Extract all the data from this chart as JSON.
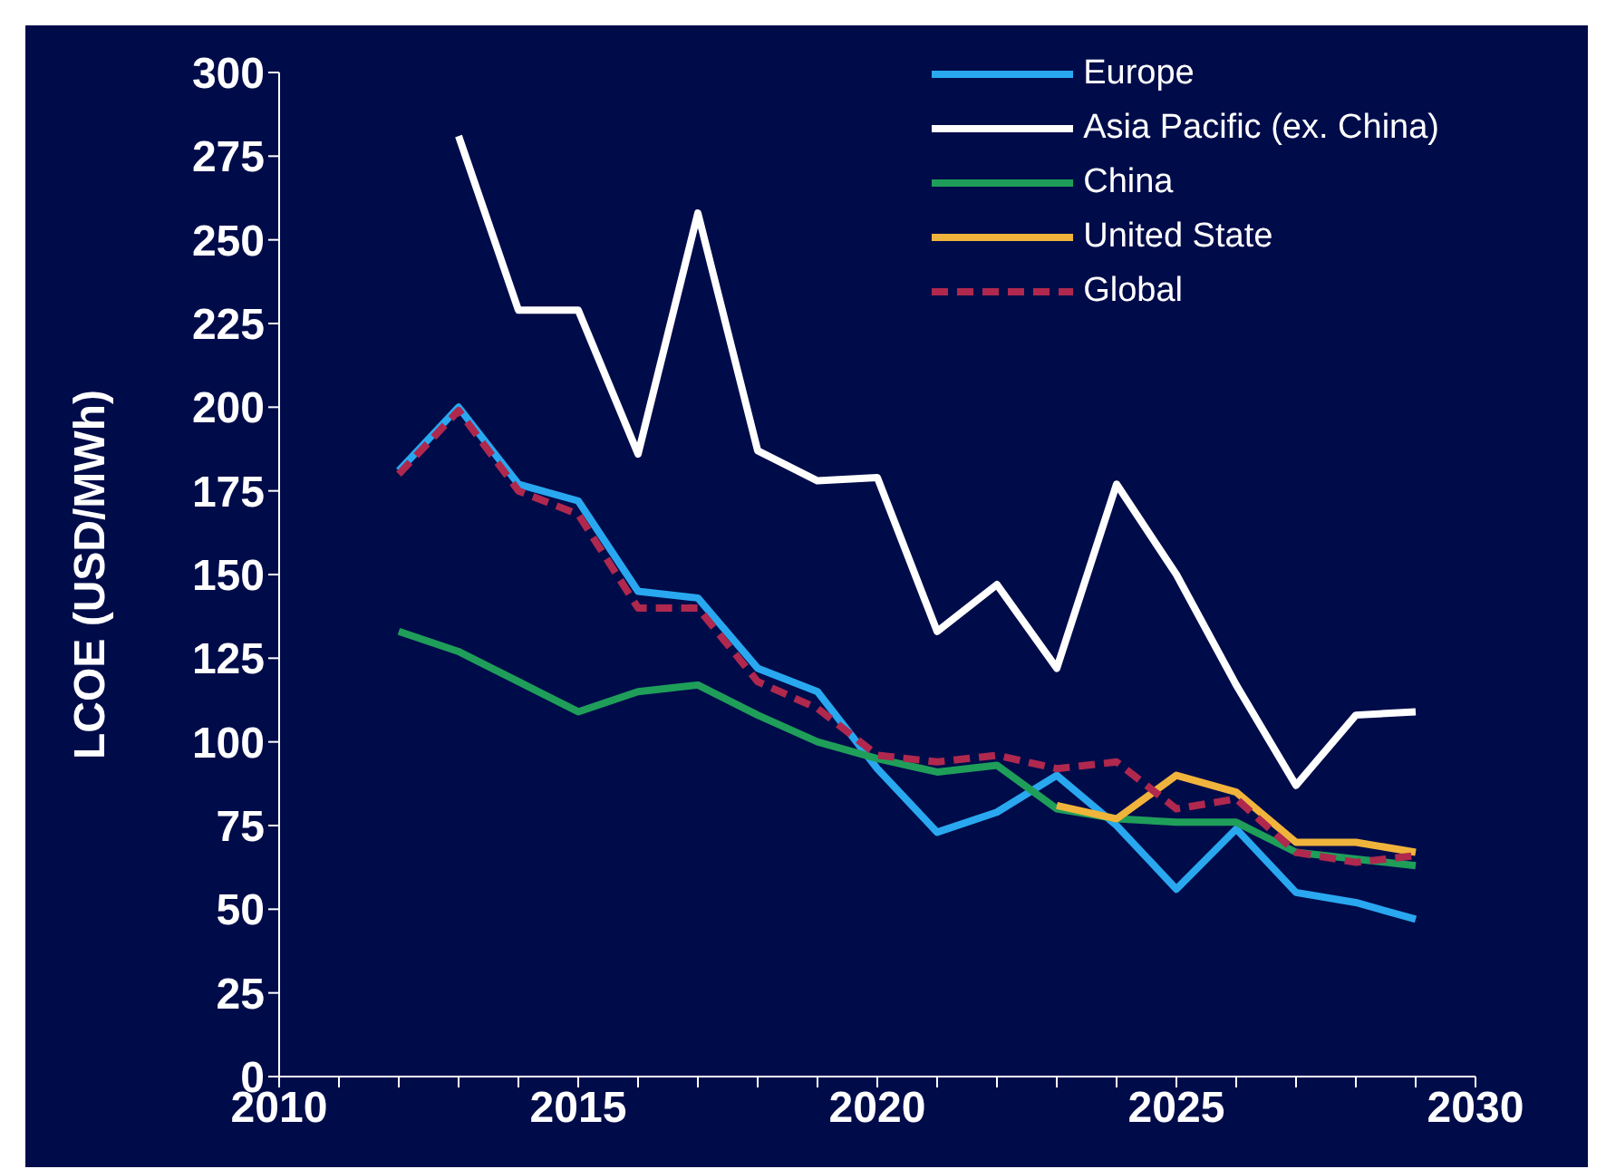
{
  "chart_data": {
    "type": "line",
    "ylabel": "LCOE (USD/MWh)",
    "x": [
      2012,
      2013,
      2014,
      2015,
      2016,
      2017,
      2018,
      2019,
      2020,
      2021,
      2022,
      2023,
      2024,
      2025,
      2026,
      2027,
      2028,
      2029
    ],
    "xlim": [
      2010,
      2030
    ],
    "xticks": [
      2010,
      {
        "value": 2011,
        "label": null
      },
      {
        "value": 2012,
        "label": null
      },
      {
        "value": 2013,
        "label": null
      },
      {
        "value": 2014,
        "label": null
      },
      2015,
      {
        "value": 2016,
        "label": null
      },
      {
        "value": 2017,
        "label": null
      },
      {
        "value": 2018,
        "label": null
      },
      {
        "value": 2019,
        "label": null
      },
      2020,
      {
        "value": 2021,
        "label": null
      },
      {
        "value": 2022,
        "label": null
      },
      {
        "value": 2023,
        "label": null
      },
      {
        "value": 2024,
        "label": null
      },
      2025,
      {
        "value": 2026,
        "label": null
      },
      {
        "value": 2027,
        "label": null
      },
      {
        "value": 2028,
        "label": null
      },
      {
        "value": 2029,
        "label": null
      },
      2030
    ],
    "ylim": [
      0,
      300
    ],
    "yticks": [
      0,
      25,
      50,
      75,
      100,
      125,
      150,
      175,
      200,
      225,
      250,
      275,
      300
    ],
    "grid": false,
    "legend": "top right",
    "marker": "none",
    "series": [
      {
        "name": "Europe",
        "color": "#29a8f0",
        "values": [
          181,
          200,
          177,
          172,
          145,
          143,
          122,
          115,
          92,
          73,
          79,
          90,
          75,
          56,
          74,
          55,
          52,
          47
        ]
      },
      {
        "name": "Asia Pacific (ex. China)",
        "color": "#ffffff",
        "values": [
          null,
          281,
          229,
          229,
          186,
          258,
          187,
          178,
          179,
          133,
          147,
          122,
          177,
          150,
          117,
          87,
          108,
          109
        ]
      },
      {
        "name": "China",
        "color": "#1f9e5a",
        "values": [
          133,
          127,
          118,
          109,
          115,
          117,
          108,
          100,
          95,
          91,
          93,
          80,
          77,
          76,
          76,
          67,
          65,
          63
        ]
      },
      {
        "name": "United State",
        "color": "#f0b43c",
        "values": [
          null,
          null,
          null,
          null,
          null,
          null,
          null,
          null,
          null,
          null,
          null,
          81,
          77,
          90,
          85,
          70,
          70,
          67
        ]
      },
      {
        "name": "Global",
        "color": "#b0284e",
        "line_style": "dashed",
        "values": [
          180,
          199,
          175,
          168,
          140,
          140,
          118,
          110,
          96,
          94,
          96,
          92,
          94,
          80,
          83,
          67,
          64,
          66
        ]
      }
    ]
  }
}
